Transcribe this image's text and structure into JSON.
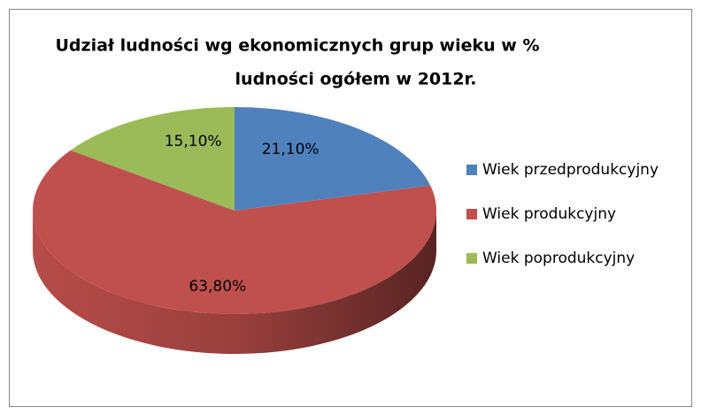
{
  "chart_data": {
    "type": "pie",
    "title": [
      "Udział ludności wg ekonomicznych grup wieku w %",
      "ludności ogółem w 2012r."
    ],
    "categories": [
      "Wiek przedprodukcyjny",
      "Wiek produkcyjny",
      "Wiek poprodukcyjny"
    ],
    "values": [
      21.1,
      63.8,
      15.1
    ],
    "value_labels": [
      "21,10%",
      "63,80%",
      "15,10%"
    ],
    "colors": [
      "#4f81bd",
      "#c0504d",
      "#9bbb59"
    ],
    "legend": "right"
  }
}
